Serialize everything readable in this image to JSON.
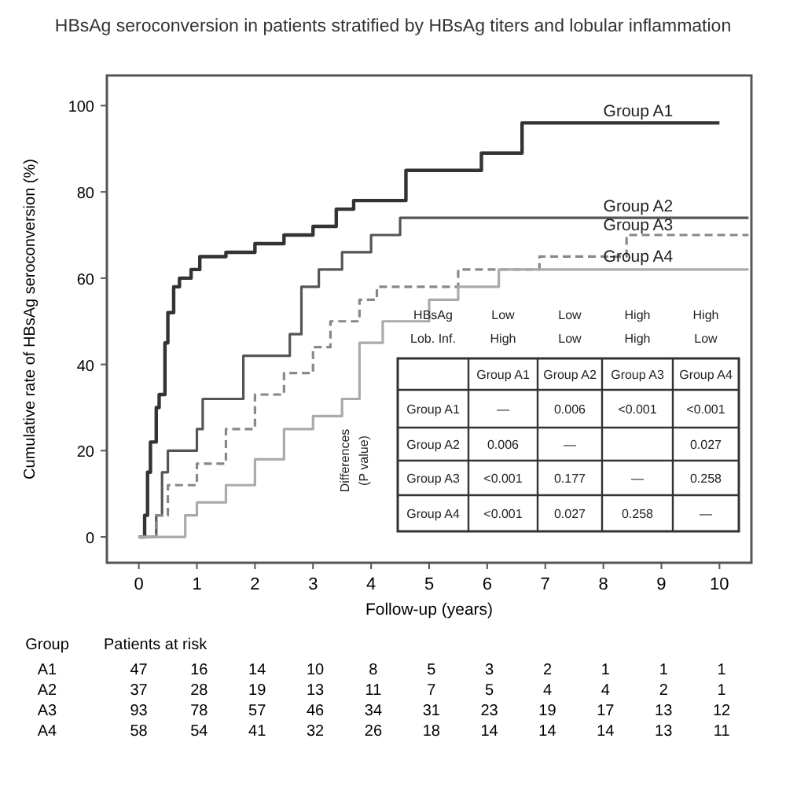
{
  "chart_data": {
    "type": "step",
    "title": "HBsAg seroconversion in patients stratified by HBsAg titers and lobular inflammation",
    "xlabel": "Follow-up (years)",
    "ylabel": "Cumulative rate of HBsAg seroconversion (%)",
    "xlim": [
      -0.55,
      10.55
    ],
    "ylim": [
      -6,
      107
    ],
    "xticks": [
      0,
      1,
      2,
      3,
      4,
      5,
      6,
      7,
      8,
      9,
      10
    ],
    "yticks": [
      0,
      20,
      40,
      60,
      80,
      100
    ],
    "grid": false,
    "marker": "none",
    "series": [
      {
        "name": "Group A1",
        "color": "#333333",
        "line_style": "solid",
        "x": [
          0,
          0.1,
          0.15,
          0.2,
          0.3,
          0.35,
          0.45,
          0.5,
          0.6,
          0.7,
          0.9,
          1.05,
          1.5,
          2,
          2.5,
          3,
          3.4,
          3.7,
          4.6,
          5.9,
          6.6,
          10
        ],
        "values": [
          0,
          5,
          15,
          22,
          30,
          33,
          45,
          52,
          58,
          60,
          62,
          65,
          66,
          68,
          70,
          72,
          76,
          78,
          85,
          89,
          96,
          96
        ]
      },
      {
        "name": "Group A2",
        "color": "#555555",
        "line_style": "solid",
        "x": [
          0,
          0.3,
          0.4,
          0.5,
          1,
          1.1,
          1.8,
          2.6,
          2.8,
          3.1,
          3.5,
          4,
          4.5,
          10.5
        ],
        "values": [
          0,
          5,
          15,
          20,
          25,
          32,
          42,
          47,
          58,
          62,
          66,
          70,
          74,
          74
        ]
      },
      {
        "name": "Group A3",
        "color": "#888888",
        "line_style": "dashed",
        "x": [
          0,
          0.3,
          0.5,
          1,
          1.5,
          2,
          2.5,
          3,
          3.3,
          3.8,
          4.1,
          5.5,
          6.9,
          8.4,
          10.5
        ],
        "values": [
          0,
          5,
          12,
          17,
          25,
          33,
          38,
          44,
          50,
          55,
          58,
          62,
          65,
          70,
          70
        ]
      },
      {
        "name": "Group A4",
        "color": "#aaaaaa",
        "line_style": "solid",
        "x": [
          0,
          0.7,
          0.8,
          1,
          1.5,
          2,
          2.5,
          3,
          3.5,
          3.8,
          4.2,
          5,
          5.5,
          6.2,
          10.5
        ],
        "values": [
          0,
          0,
          5,
          8,
          12,
          18,
          25,
          28,
          32,
          45,
          50,
          55,
          58,
          62,
          62
        ]
      }
    ],
    "annotations": [
      "HBsAg",
      "Lob. Inf.",
      "Low",
      "High",
      "Low",
      "Low",
      "High",
      "High",
      "High",
      "Low",
      "Group A1",
      "Group A2",
      "Group A3",
      "Group A4",
      "Group A1",
      "—",
      "0.006",
      "<0.001",
      "<0.001",
      "Group A2",
      "0.006",
      "—",
      "0.027",
      "Group A3",
      "<0.001",
      "0.177",
      "—",
      "0.258",
      "Group A4",
      "<0.001",
      "0.027",
      "0.258",
      "—",
      "Differences",
      "(P value)",
      "Group",
      "Patients at risk",
      "A1",
      "47 16 14 10 8 5 3 2 1 1 1",
      "A2",
      "37 28 19 13 11 7 5 4 4 2 1",
      "A3",
      "93 78 57 46 34 31 23 19 17 13 12",
      "A4",
      "58 54 41 32 26 18 14 14 14 13 11"
    ]
  }
}
